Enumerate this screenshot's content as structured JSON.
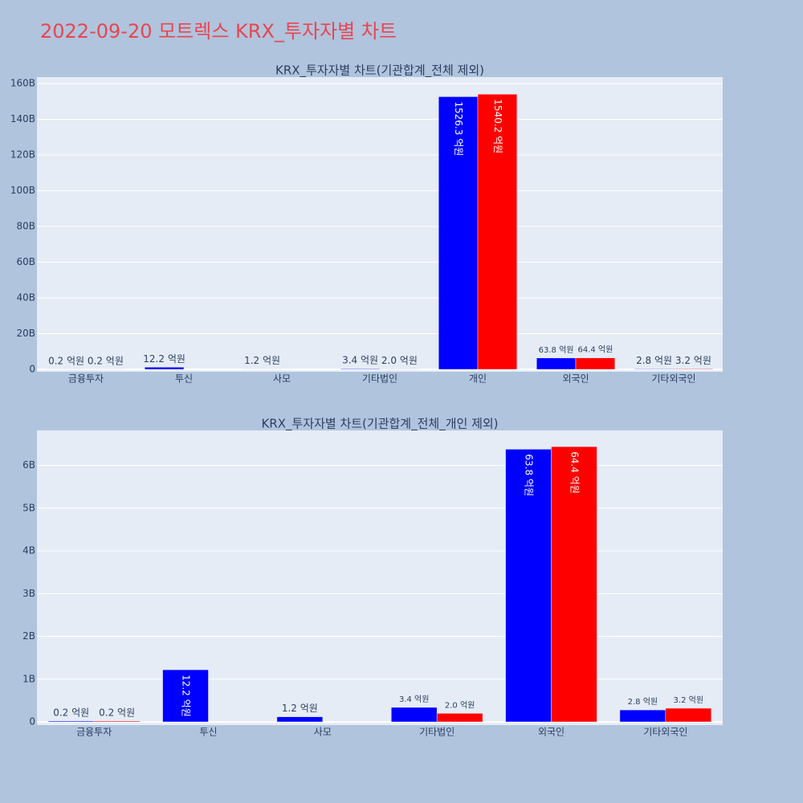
{
  "title": "2022-09-20 모트렉스 KRX_투자자별 차트",
  "chart_data": [
    {
      "type": "bar",
      "title": "KRX_투자자별 차트(기관합계_전체 제외)",
      "categories": [
        "금융투자",
        "투신",
        "사모",
        "기타법인",
        "개인",
        "외국인",
        "기타외국인"
      ],
      "series": [
        {
          "color": "#0000ff",
          "values": [
            20000000,
            1220000000,
            120000000,
            340000000,
            152630000000,
            6380000000,
            280000000
          ],
          "value_labels": [
            "0.2 억원",
            "12.2 억원",
            "1.2 억원",
            "3.4 억원",
            "1526.3 억원",
            "63.8 억원",
            "2.8 억원"
          ]
        },
        {
          "color": "#ff0000",
          "values": [
            20000000,
            null,
            null,
            200000000,
            154020000000,
            6440000000,
            320000000
          ],
          "value_labels": [
            "0.2 억원",
            null,
            null,
            "2.0 억원",
            "1540.2 억원",
            "64.4 억원",
            "3.2 억원"
          ]
        }
      ],
      "ylim": [
        -1350000000,
        163600000000
      ],
      "yticks": [
        0,
        {
          "value": 20000000000,
          "label": "20B"
        },
        {
          "value": 40000000000,
          "label": "40B"
        },
        {
          "value": 60000000000,
          "label": "60B"
        },
        {
          "value": 80000000000,
          "label": "80B"
        },
        {
          "value": 100000000000,
          "label": "100B"
        },
        {
          "value": 120000000000,
          "label": "120B"
        },
        {
          "value": 140000000000,
          "label": "140B"
        },
        {
          "value": 160000000000,
          "label": "160B"
        }
      ],
      "grid": true
    },
    {
      "type": "bar",
      "title": "KRX_투자자별 차트(기관합계_전체_개인 제외)",
      "categories": [
        "금융투자",
        "투신",
        "사모",
        "기타법인",
        "외국인",
        "기타외국인"
      ],
      "series": [
        {
          "color": "#0000ff",
          "values": [
            20000000,
            1220000000,
            120000000,
            340000000,
            6380000000,
            280000000
          ],
          "value_labels": [
            "0.2 억원",
            "12.2 억원",
            "1.2 억원",
            "3.4 억원",
            "63.8 억원",
            "2.8 억원"
          ]
        },
        {
          "color": "#ff0000",
          "values": [
            20000000,
            null,
            null,
            200000000,
            6440000000,
            320000000
          ],
          "value_labels": [
            "0.2 억원",
            null,
            null,
            "2.0 억원",
            "64.4 억원",
            "3.2 억원"
          ]
        }
      ],
      "ylim": [
        -75000000,
        6820000000
      ],
      "yticks": [
        0,
        {
          "value": 1000000000,
          "label": "1B"
        },
        {
          "value": 2000000000,
          "label": "2B"
        },
        {
          "value": 3000000000,
          "label": "3B"
        },
        {
          "value": 4000000000,
          "label": "4B"
        },
        {
          "value": 5000000000,
          "label": "5B"
        },
        {
          "value": 6000000000,
          "label": "6B"
        }
      ],
      "grid": true
    }
  ]
}
